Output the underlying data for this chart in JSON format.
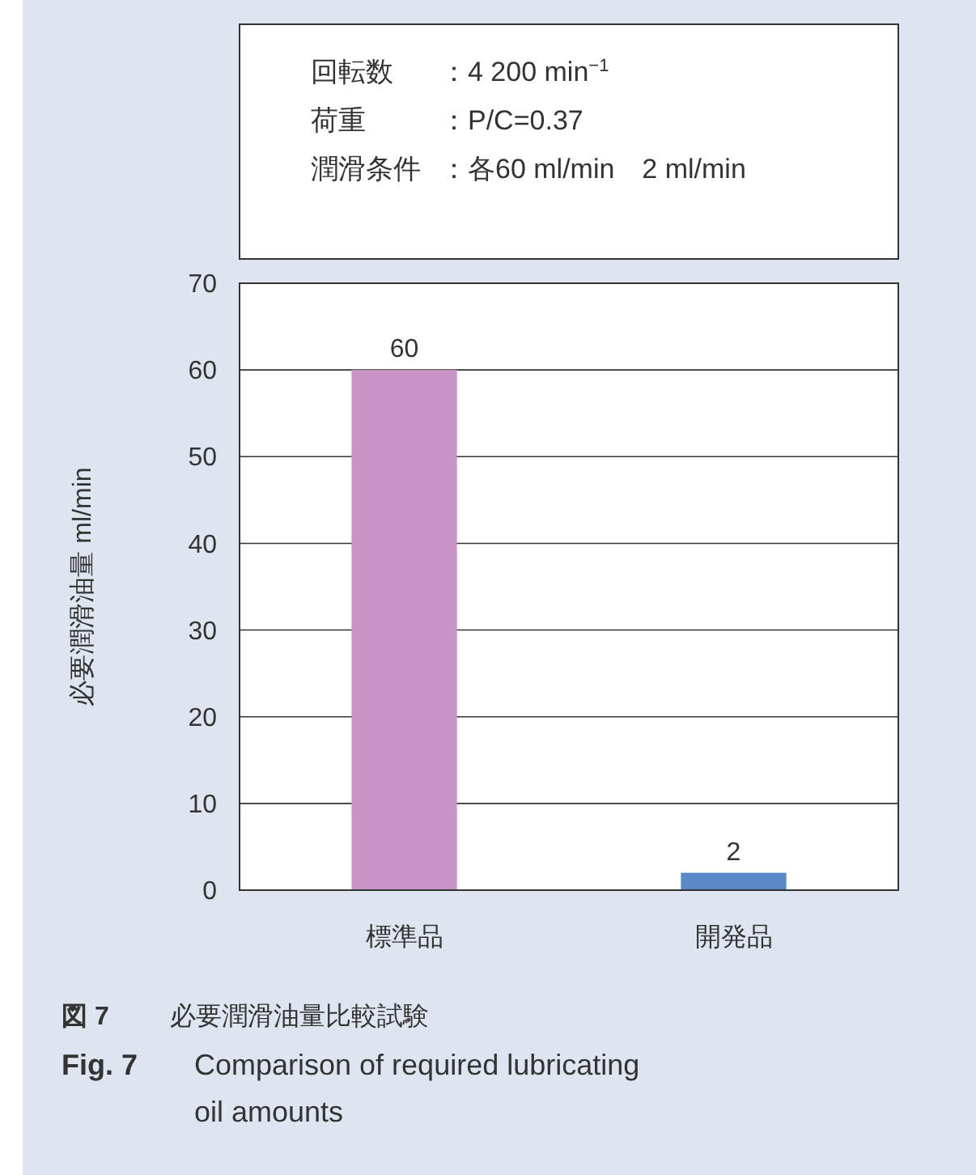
{
  "chart_data": {
    "type": "bar",
    "title": "図 7　必要潤滑油量比較試験",
    "subtitle": "Fig. 7　Comparison of required lubricating oil amounts",
    "ylabel": "必要潤滑油量 ml/min",
    "categories": [
      "標準品",
      "開発品"
    ],
    "values": [
      60,
      2
    ],
    "colors": [
      "#c994c5",
      "#5b88c6"
    ],
    "ylim": [
      0,
      70
    ],
    "yticks": [
      0,
      10,
      20,
      30,
      40,
      50,
      60,
      70
    ],
    "grid": "y",
    "data_labels": true,
    "annotations": [
      "回転数：4 200 min$^{−1}$",
      "荷重：P/C=0.37",
      "潤滑条件：各60 ml/min　2 ml/min"
    ]
  }
}
